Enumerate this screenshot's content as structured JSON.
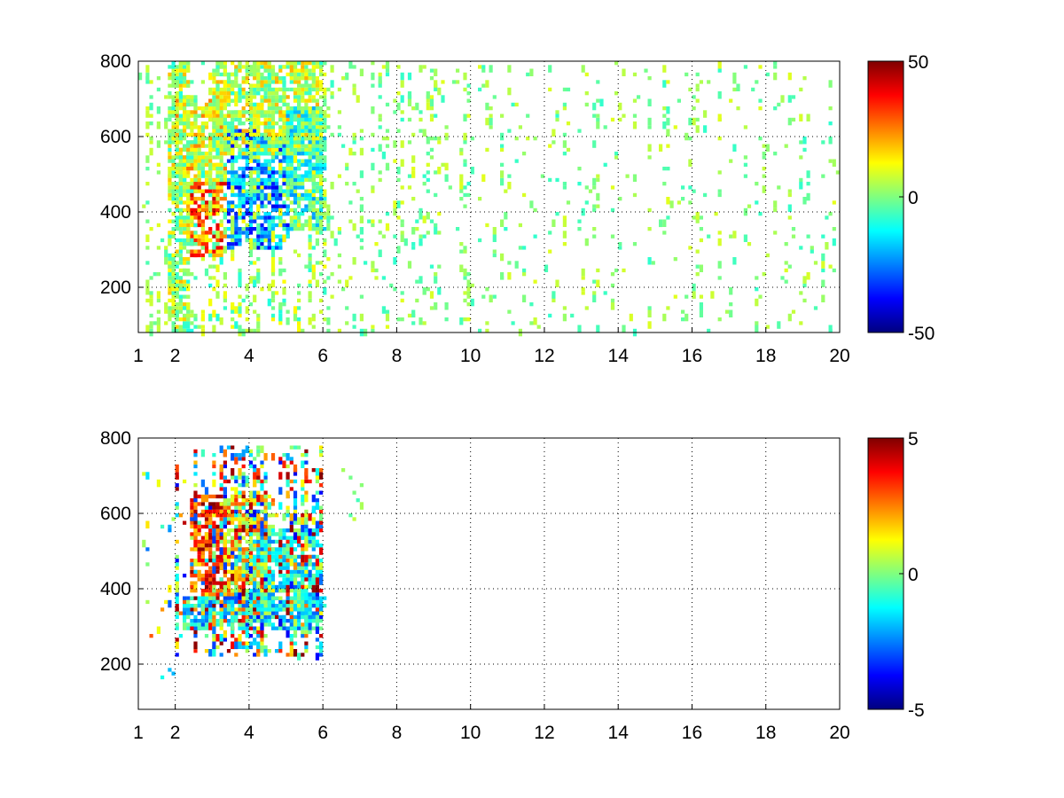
{
  "chart_data": [
    {
      "type": "heatmap",
      "colormap": "jet",
      "grid": true,
      "xlim": [
        1,
        20
      ],
      "ylim": [
        80,
        800
      ],
      "xticks": [
        1,
        2,
        4,
        6,
        8,
        10,
        12,
        14,
        16,
        18,
        20
      ],
      "yticks": [
        200,
        400,
        600,
        800
      ],
      "xtick_labels": [
        "1",
        "2",
        "4",
        "6",
        "8",
        "10",
        "12",
        "14",
        "16",
        "18",
        "20"
      ],
      "ytick_labels": [
        "200",
        "400",
        "600",
        "800"
      ],
      "colorbar": {
        "range": [
          -50,
          50
        ],
        "ticks": [
          50,
          0,
          -50
        ],
        "tick_labels": [
          "50",
          "0",
          "-50"
        ],
        "placement": "right"
      },
      "regions": [
        {
          "x": [
            2.3,
            3.3
          ],
          "y": [
            280,
            480
          ],
          "value": 28
        },
        {
          "x": [
            2.0,
            3.4
          ],
          "y": [
            480,
            700
          ],
          "value": 12
        },
        {
          "x": [
            3.4,
            5.0
          ],
          "y": [
            300,
            620
          ],
          "value": -25
        },
        {
          "x": [
            3.0,
            5.9
          ],
          "y": [
            550,
            800
          ],
          "value": 6
        },
        {
          "x": [
            1.8,
            2.4
          ],
          "y": [
            80,
            800
          ],
          "value": 5
        },
        {
          "x": [
            5.0,
            5.9
          ],
          "y": [
            350,
            680
          ],
          "value": -8
        }
      ],
      "scatter": [
        {
          "x": [
            1,
            2
          ],
          "y": [
            80,
            800
          ],
          "value": [
            -6,
            10
          ],
          "density": 0.1
        },
        {
          "x": [
            2,
            6
          ],
          "y": [
            80,
            800
          ],
          "value": [
            -10,
            14
          ],
          "density": 0.18
        },
        {
          "x": [
            6,
            10
          ],
          "y": [
            80,
            800
          ],
          "value": [
            -8,
            10
          ],
          "density": 0.1
        },
        {
          "x": [
            10,
            20
          ],
          "y": [
            80,
            800
          ],
          "value": [
            -8,
            10
          ],
          "density": 0.06
        }
      ]
    },
    {
      "type": "heatmap",
      "colormap": "jet",
      "grid": true,
      "xlim": [
        1,
        20
      ],
      "ylim": [
        80,
        800
      ],
      "xticks": [
        1,
        2,
        4,
        6,
        8,
        10,
        12,
        14,
        16,
        18,
        20
      ],
      "yticks": [
        200,
        400,
        600,
        800
      ],
      "xtick_labels": [
        "1",
        "2",
        "4",
        "6",
        "8",
        "10",
        "12",
        "14",
        "16",
        "18",
        "20"
      ],
      "ytick_labels": [
        "200",
        "400",
        "600",
        "800"
      ],
      "colorbar": {
        "range": [
          -5,
          5
        ],
        "ticks": [
          5,
          0,
          -5
        ],
        "tick_labels": [
          "5",
          "0",
          "-5"
        ],
        "placement": "right"
      },
      "regions": [
        {
          "x": [
            2.4,
            3.3
          ],
          "y": [
            330,
            650
          ],
          "value": 3.5
        },
        {
          "x": [
            3.3,
            4.5
          ],
          "y": [
            330,
            650
          ],
          "value": 1.5
        },
        {
          "x": [
            2.2,
            5.9
          ],
          "y": [
            290,
            380
          ],
          "value": -1.5
        },
        {
          "x": [
            4.0,
            5.8
          ],
          "y": [
            350,
            560
          ],
          "value": -1
        }
      ],
      "scatter": [
        {
          "x": [
            2.0,
            5.9
          ],
          "y": [
            220,
            780
          ],
          "value": [
            -4,
            5
          ],
          "density": 0.28
        },
        {
          "x": [
            6.5,
            7.0
          ],
          "y": [
            580,
            720
          ],
          "value": [
            -1,
            2
          ],
          "density": 0.1
        },
        {
          "x": [
            1.1,
            2.0
          ],
          "y": [
            150,
            750
          ],
          "value": [
            -3,
            3
          ],
          "density": 0.015
        }
      ]
    }
  ]
}
